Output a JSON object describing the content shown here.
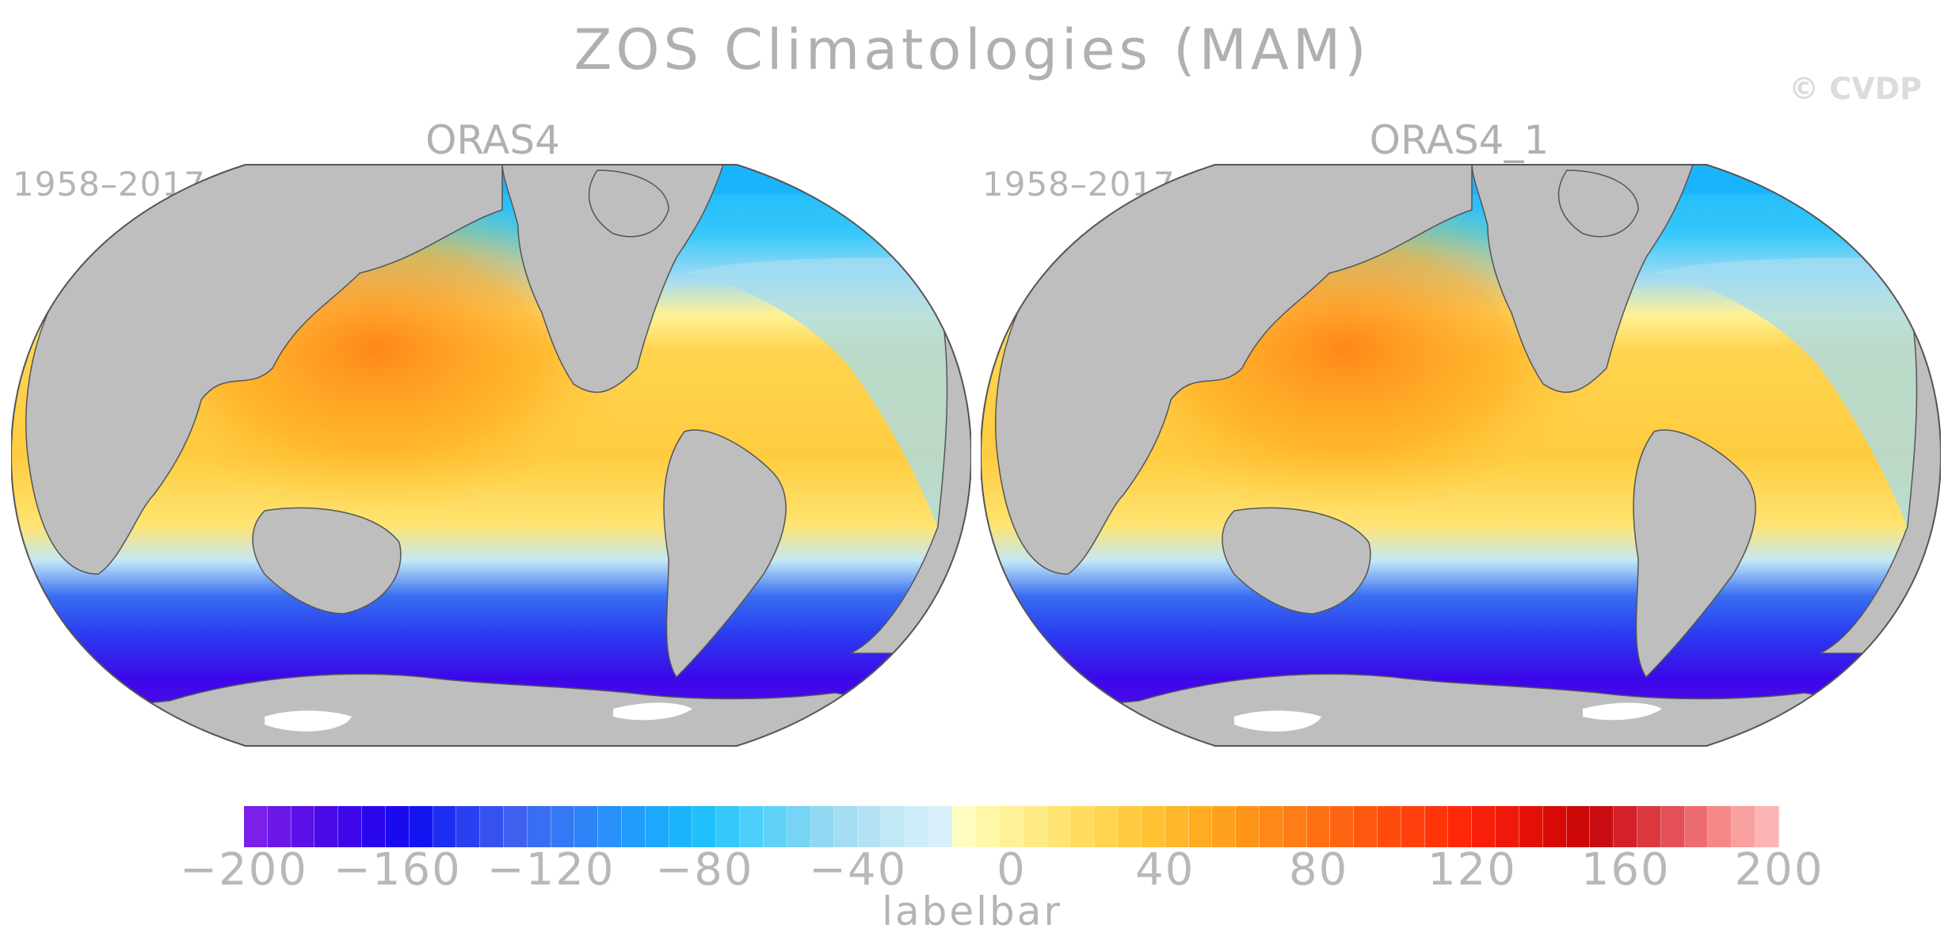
{
  "title": "ZOS Climatologies (MAM)",
  "copyright": "© CVDP",
  "panels": [
    {
      "title": "ORAS4",
      "period": "1958–2017"
    },
    {
      "title": "ORAS4_1",
      "period": "1958–2017"
    }
  ],
  "colorbar": {
    "label": "labelbar",
    "min": -200,
    "max": 200,
    "tick_labels": [
      "−200",
      "−160",
      "−120",
      "−80",
      "−40",
      "0",
      "40",
      "80",
      "120",
      "160",
      "200"
    ],
    "colors": [
      "#7a20e8",
      "#6a17e8",
      "#5a10e6",
      "#4a0ae8",
      "#3c08ea",
      "#2a06ec",
      "#1a0aee",
      "#1414f0",
      "#1e2ef0",
      "#2a40f0",
      "#3552f0",
      "#4060f0",
      "#3a6ef2",
      "#3478f4",
      "#2e84f6",
      "#2890f8",
      "#229cfa",
      "#1ea8fb",
      "#1ab4fc",
      "#20c0fc",
      "#34c8fb",
      "#4ccffa",
      "#60d2f7",
      "#78d4f4",
      "#90d8f2",
      "#a4dcf2",
      "#b4e2f4",
      "#c2e8f6",
      "#ceecf8",
      "#d8f0fa",
      "#fffcc0",
      "#fff8a8",
      "#fff296",
      "#ffec84",
      "#ffe472",
      "#ffdc60",
      "#ffd450",
      "#ffcc40",
      "#ffc234",
      "#ffb82a",
      "#ffac22",
      "#ffa01e",
      "#ff941a",
      "#ff8818",
      "#ff7c16",
      "#ff7014",
      "#ff6412",
      "#ff5810",
      "#ff4c0e",
      "#ff400c",
      "#ff340a",
      "#ff2808",
      "#f82008",
      "#f01808",
      "#e41008",
      "#d80a08",
      "#cc0808",
      "#c80c10",
      "#d42028",
      "#dc3840",
      "#e45058",
      "#ec6c70",
      "#f48888",
      "#f8a0a0",
      "#fcb4b4"
    ]
  },
  "map_colors": {
    "land": "#bebebe",
    "land_outline": "#555555",
    "ice_white": "#ffffff"
  }
}
